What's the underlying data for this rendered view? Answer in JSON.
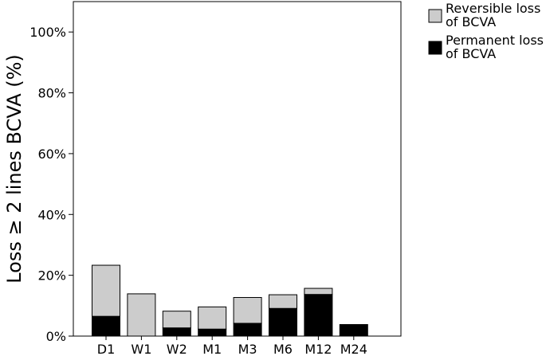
{
  "chart_data": {
    "type": "bar",
    "stacked": true,
    "categories": [
      "D1",
      "W1",
      "W2",
      "M1",
      "M3",
      "M6",
      "M12",
      "M24"
    ],
    "series": [
      {
        "name": "Permanent loss of BCVA",
        "color": "#000000",
        "values": [
          6.5,
          0,
          2.7,
          2.3,
          4.2,
          9.1,
          13.7,
          3.8
        ]
      },
      {
        "name": "Reversible loss of BCVA",
        "color": "#cccccc",
        "values": [
          16.8,
          13.9,
          5.5,
          7.3,
          8.5,
          4.5,
          2.0,
          0
        ]
      }
    ],
    "ylabel": "Loss ≥ 2 lines BCVA (%)",
    "xlabel": "",
    "ylim": [
      0,
      110
    ],
    "y_ticks": [
      0,
      20,
      40,
      60,
      80,
      100
    ],
    "y_tick_labels": [
      "0%",
      "20%",
      "40%",
      "60%",
      "80%",
      "100%"
    ],
    "grid": false,
    "legend": {
      "position": "top-right outside",
      "entries": [
        {
          "lines": [
            "Reversible loss",
            "of BCVA"
          ],
          "color": "#cccccc"
        },
        {
          "lines": [
            "Permanent loss",
            "of BCVA"
          ],
          "color": "#000000"
        }
      ]
    }
  }
}
